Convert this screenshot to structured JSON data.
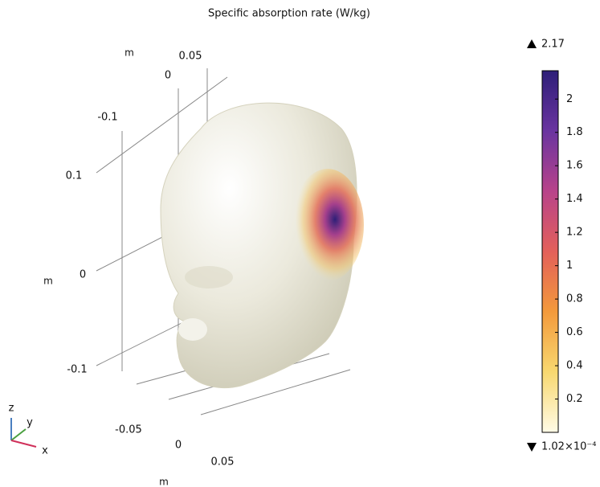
{
  "chart_data": {
    "type": "surface3d",
    "title": "Specific absorption rate (W/kg)",
    "axes": {
      "y": {
        "label": "m",
        "ticks": [
          0.05,
          0,
          -0.1
        ]
      },
      "z": {
        "label": "m",
        "ticks": [
          0.1,
          0,
          -0.1
        ]
      },
      "x": {
        "label": "m",
        "ticks": [
          -0.05,
          0,
          0.05
        ]
      }
    },
    "triad": [
      "z",
      "y",
      "x"
    ],
    "colorbar": {
      "max": 2.17,
      "min": {
        "value": 0.000102,
        "label": "1.02×10⁻⁴"
      },
      "ticks": [
        0.2,
        0.4,
        0.6,
        0.8,
        1,
        1.2,
        1.4,
        1.6,
        1.8,
        2
      ],
      "colormap": [
        "#fffbe6",
        "#f8d870",
        "#f39a3c",
        "#e3605a",
        "#b8438a",
        "#6a34a0",
        "#2e1f78"
      ]
    }
  }
}
